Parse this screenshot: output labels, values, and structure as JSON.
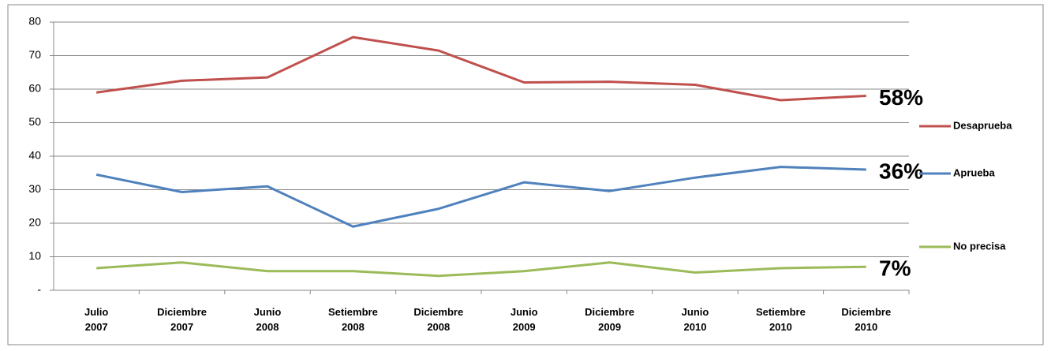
{
  "chart_data": {
    "type": "line",
    "categories": [
      "Julio 2007",
      "Diciembre 2007",
      "Junio 2008",
      "Setiembre 2008",
      "Diciembre 2008",
      "Junio 2009",
      "Diciembre 2009",
      "Junio 2010",
      "Setiembre 2010",
      "Diciembre 2010"
    ],
    "series": [
      {
        "name": "Desaprueba",
        "color": "#c0504d",
        "values": [
          59,
          62.5,
          63.5,
          75.5,
          71.5,
          62,
          62.2,
          61.3,
          56.7,
          58
        ],
        "annotation": "58%"
      },
      {
        "name": "Aprueba",
        "color": "#4f81bd",
        "values": [
          34.5,
          29.3,
          31,
          19,
          24.3,
          32.2,
          29.6,
          33.6,
          36.8,
          36
        ],
        "annotation": "36%"
      },
      {
        "name": "No precisa",
        "color": "#9bbb59",
        "values": [
          6.6,
          8.3,
          5.7,
          5.7,
          4.3,
          5.7,
          8.3,
          5.3,
          6.6,
          7
        ],
        "annotation": "7%"
      }
    ],
    "ylim": [
      0,
      80
    ],
    "yticks": [
      {
        "value": 0,
        "label": "-"
      },
      10,
      20,
      30,
      40,
      50,
      60,
      70,
      80
    ],
    "grid": true,
    "legend": "right"
  }
}
